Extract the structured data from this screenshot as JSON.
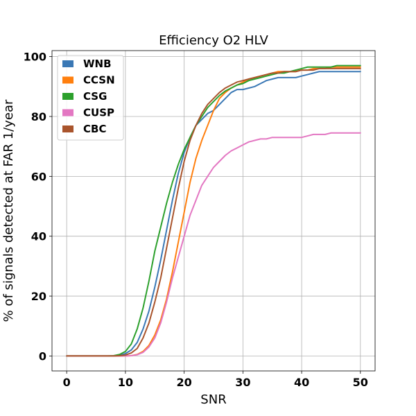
{
  "chart_data": {
    "type": "line",
    "title": "Efficiency O2 HLV",
    "xlabel": "SNR",
    "ylabel": "% of signals detected at FAR 1/year",
    "xlim": [
      -2.5,
      52.5
    ],
    "ylim": [
      -5,
      102
    ],
    "xticks": [
      0,
      10,
      20,
      30,
      40,
      50
    ],
    "yticks": [
      0,
      20,
      40,
      60,
      80,
      100
    ],
    "grid": true,
    "legend_position": "top-left",
    "x": [
      0,
      1,
      2,
      3,
      4,
      5,
      6,
      7,
      8,
      9,
      10,
      11,
      12,
      13,
      14,
      15,
      16,
      17,
      18,
      19,
      20,
      21,
      22,
      23,
      24,
      25,
      26,
      27,
      28,
      29,
      30,
      31,
      32,
      33,
      34,
      35,
      36,
      37,
      38,
      39,
      40,
      41,
      42,
      43,
      44,
      45,
      46,
      47,
      48,
      49,
      50
    ],
    "series": [
      {
        "name": "WNB",
        "color": "#3a78b5",
        "values": [
          0,
          0,
          0,
          0,
          0,
          0,
          0,
          0,
          0,
          0.2,
          0.8,
          2,
          4.5,
          9,
          15,
          23,
          32,
          42,
          52,
          61,
          68,
          73,
          77,
          79,
          81,
          82,
          84,
          86,
          88,
          89,
          89,
          89.5,
          90,
          91,
          92,
          92.5,
          93,
          93,
          93,
          93,
          93.5,
          94,
          94.5,
          95,
          95,
          95,
          95,
          95,
          95,
          95,
          95
        ]
      },
      {
        "name": "CCSN",
        "color": "#ff7f0e",
        "values": [
          0,
          0,
          0,
          0,
          0,
          0,
          0,
          0,
          0,
          0,
          0,
          0.1,
          0.5,
          1.5,
          3.5,
          7,
          12,
          19,
          28,
          38,
          48,
          58,
          66,
          72,
          77,
          82,
          86,
          88,
          89.5,
          90.5,
          91.5,
          92.5,
          93,
          93.5,
          94,
          94.5,
          95,
          95,
          95,
          95,
          95.5,
          95.5,
          96,
          96,
          96,
          96.5,
          96.5,
          96.5,
          96.5,
          96.5,
          96.5
        ]
      },
      {
        "name": "CSG",
        "color": "#2ca02c",
        "values": [
          0,
          0,
          0,
          0,
          0,
          0,
          0,
          0,
          0.1,
          0.5,
          1.5,
          4,
          9,
          16,
          25,
          35,
          43,
          51,
          58,
          64,
          69,
          73,
          77,
          80,
          83,
          85,
          87,
          88.5,
          89.5,
          90.5,
          91,
          92,
          92.5,
          93,
          93.5,
          94,
          94.5,
          94.5,
          95,
          95.5,
          96,
          96.5,
          96.5,
          96.5,
          96.5,
          96.5,
          97,
          97,
          97,
          97,
          97
        ]
      },
      {
        "name": "CUSP",
        "color": "#e377c2",
        "values": [
          0,
          0,
          0,
          0,
          0,
          0,
          0,
          0,
          0,
          0,
          0,
          0.1,
          0.4,
          1.2,
          3,
          6,
          11,
          18,
          26,
          33,
          40,
          47,
          52,
          57,
          60,
          63,
          65,
          67,
          68.5,
          69.5,
          70.5,
          71.5,
          72,
          72.5,
          72.5,
          73,
          73,
          73,
          73,
          73,
          73,
          73.5,
          74,
          74,
          74,
          74.5,
          74.5,
          74.5,
          74.5,
          74.5,
          74.5
        ]
      },
      {
        "name": "CBC",
        "color": "#a9542c",
        "values": [
          0,
          0,
          0,
          0,
          0,
          0,
          0,
          0,
          0,
          0.1,
          0.3,
          1,
          2.5,
          6,
          11,
          18,
          26,
          36,
          46,
          56,
          65,
          72,
          77,
          81,
          84,
          86,
          88,
          89.5,
          90.5,
          91.5,
          92,
          92.5,
          93,
          93.5,
          94,
          94.5,
          94.5,
          95,
          95,
          95,
          95.5,
          95.5,
          95.5,
          96,
          96,
          96,
          96,
          96,
          96,
          96,
          96
        ]
      }
    ]
  }
}
